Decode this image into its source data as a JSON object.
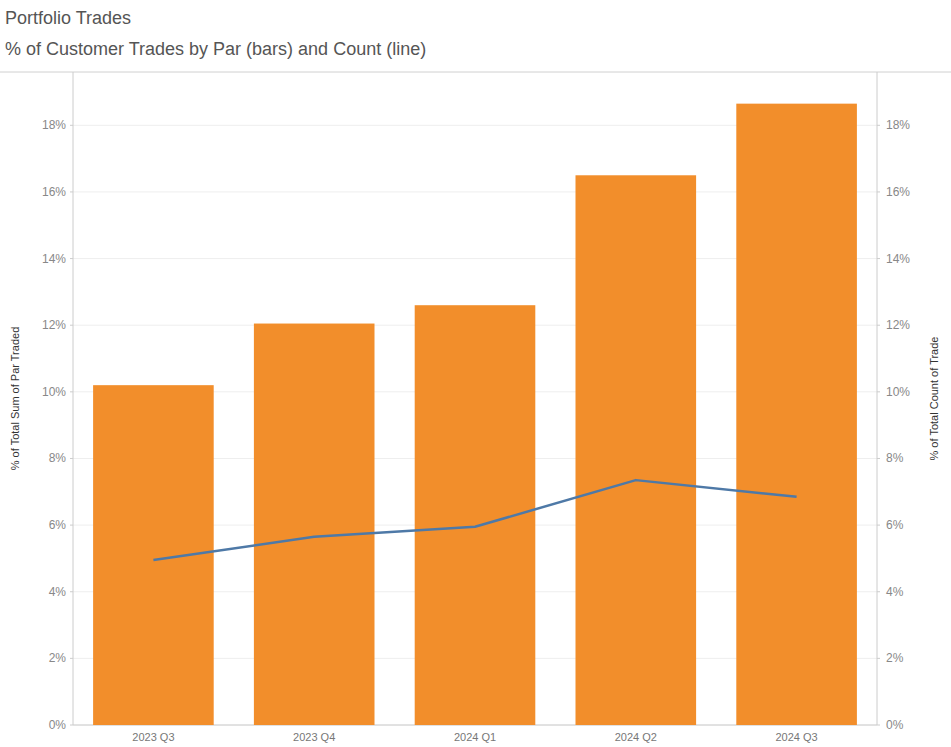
{
  "chart_data": {
    "type": "bar",
    "title": "Portfolio Trades",
    "subtitle": "% of Customer Trades by Par (bars) and Count (line)",
    "y_label": "% of Total Sum of Par Traded",
    "y2_label": "% of Total Count of Trade",
    "categories": [
      "2023 Q3",
      "2023 Q4",
      "2024 Q1",
      "2024 Q2",
      "2024 Q3"
    ],
    "series": [
      {
        "type": "bar",
        "color": "#f28e2b",
        "values": [
          10.2,
          12.05,
          12.6,
          16.5,
          18.65
        ]
      },
      {
        "type": "line",
        "axis": "y2",
        "color": "#4e79a7",
        "values": [
          4.95,
          5.65,
          5.95,
          7.35,
          6.85
        ]
      }
    ],
    "ylim": [
      0,
      19.6
    ],
    "yticks": [
      {
        "value": 0,
        "label": "0%"
      },
      {
        "value": 2,
        "label": "2%"
      },
      {
        "value": 4,
        "label": "4%"
      },
      {
        "value": 6,
        "label": "6%"
      },
      {
        "value": 8,
        "label": "8%"
      },
      {
        "value": 10,
        "label": "10%"
      },
      {
        "value": 12,
        "label": "12%"
      },
      {
        "value": 14,
        "label": "14%"
      },
      {
        "value": 16,
        "label": "16%"
      },
      {
        "value": 18,
        "label": "18%"
      }
    ],
    "y2lim": [
      0,
      19.6
    ],
    "y2ticks": [
      {
        "value": 0,
        "label": "0%"
      },
      {
        "value": 2,
        "label": "2%"
      },
      {
        "value": 4,
        "label": "4%"
      },
      {
        "value": 6,
        "label": "6%"
      },
      {
        "value": 8,
        "label": "8%"
      },
      {
        "value": 10,
        "label": "10%"
      },
      {
        "value": 12,
        "label": "12%"
      },
      {
        "value": 14,
        "label": "14%"
      },
      {
        "value": 16,
        "label": "16%"
      },
      {
        "value": 18,
        "label": "18%"
      }
    ],
    "grid": true
  }
}
